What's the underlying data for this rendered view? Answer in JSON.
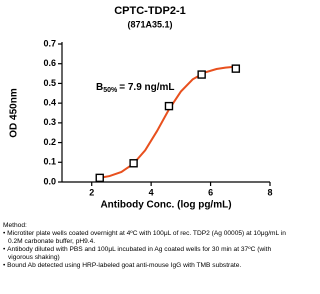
{
  "chart_data": {
    "type": "scatter",
    "title": "CPTC-TDP2-1",
    "subtitle": "(871A35.1)",
    "x_label": "Antibody Conc. (log pg/mL)",
    "y_label": "OD 450nm",
    "annotation": {
      "text": "B",
      "subscript": "50%",
      "rest": "= 7.9 ng/mL"
    },
    "xlim": [
      1,
      8
    ],
    "xticks": [
      2,
      4,
      6,
      8
    ],
    "ylim": [
      0,
      0.7
    ],
    "yticks": [
      {
        "value": 0,
        "label": "0.0"
      },
      {
        "value": 0.1,
        "label": "0.1"
      },
      {
        "value": 0.2,
        "label": "0.2"
      },
      {
        "value": 0.3,
        "label": "0.3"
      },
      {
        "value": 0.4,
        "label": "0.4"
      },
      {
        "value": 0.5,
        "label": "0.5"
      },
      {
        "value": 0.6,
        "label": "0.6"
      },
      {
        "value": 0.7,
        "label": "0.7"
      }
    ],
    "series": [
      {
        "type": "line",
        "color": "#e8501e",
        "x": [
          2.27,
          2.6,
          3.0,
          3.4,
          3.8,
          4.2,
          4.6,
          5.0,
          5.4,
          5.8,
          6.2,
          6.5,
          6.85
        ],
        "values": [
          0.021,
          0.03,
          0.051,
          0.092,
          0.161,
          0.259,
          0.368,
          0.459,
          0.521,
          0.555,
          0.573,
          0.58,
          0.585
        ]
      },
      {
        "type": "scatter",
        "color": "#000000",
        "marker": "square",
        "x": [
          2.27,
          3.41,
          4.6,
          5.7,
          6.85
        ],
        "values": [
          0.021,
          0.095,
          0.385,
          0.545,
          0.575
        ]
      }
    ]
  },
  "notes": {
    "heading": "Method:",
    "bullets": [
      "Microtiter plate wells coated overnight at 4ºC  with 100μL of rec. TDP2 (Ag 00005) at 10μg/mL in 0.2M carbonate buffer, pH9.4.",
      "Antibody diluted with PBS and 100μL incubated in Ag coated wells for 30 min at 37ºC (with vigorous shaking)",
      "Bound Ab detected using HRP-labeled goat anti-mouse IgG with TMB substrate."
    ]
  }
}
